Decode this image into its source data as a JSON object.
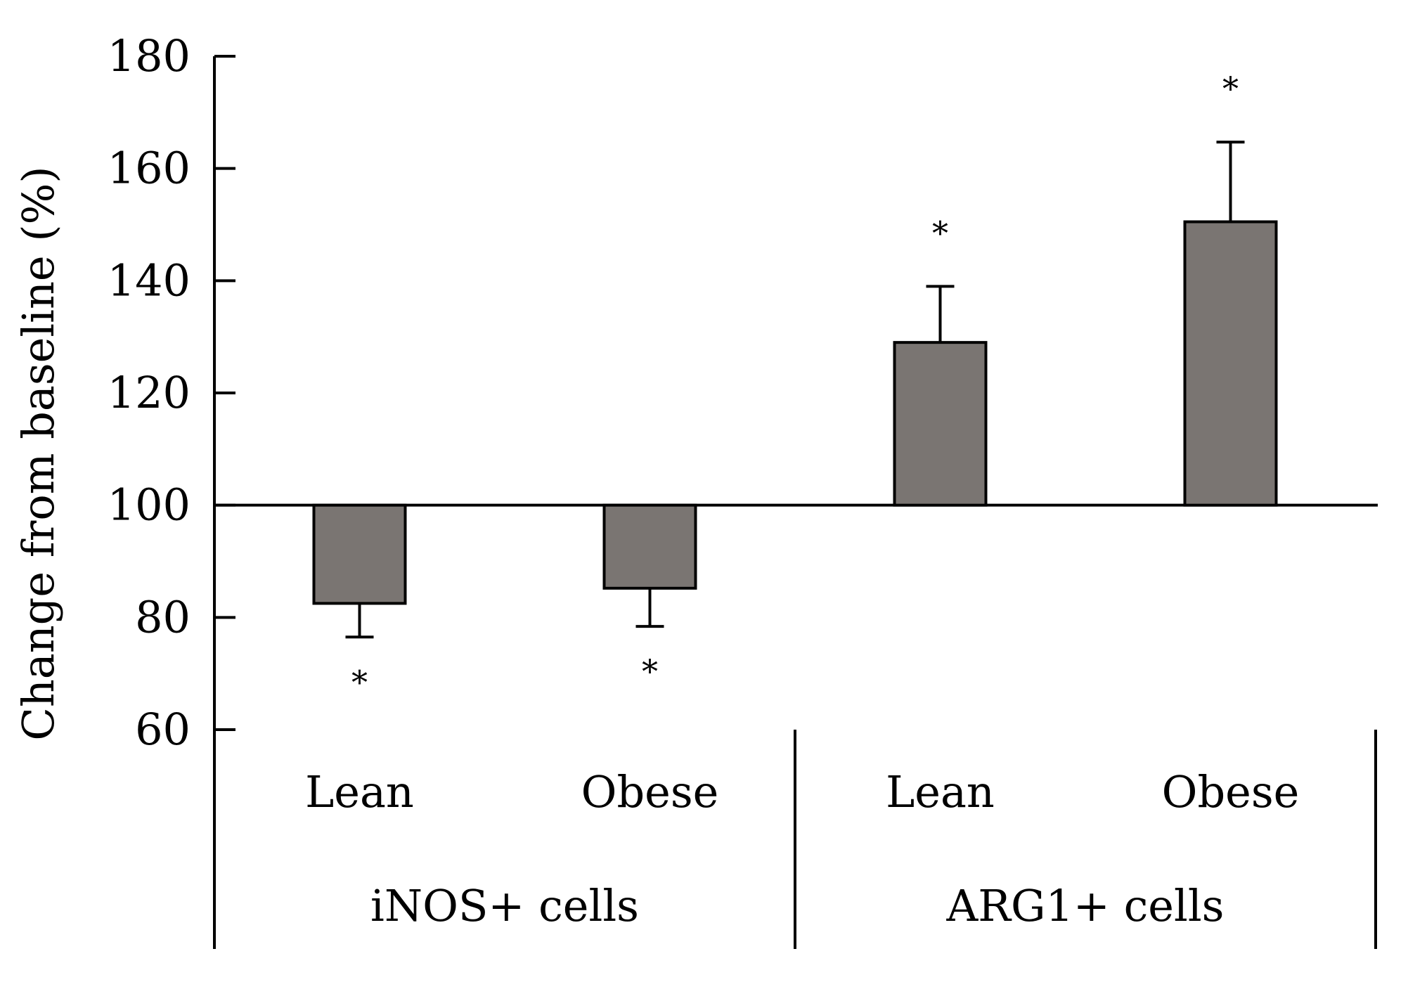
{
  "chart_data": {
    "type": "bar",
    "title": "",
    "xlabel": "",
    "ylabel": "Change from baseline (%)",
    "ylim": [
      60,
      180
    ],
    "yticks": [
      60,
      80,
      100,
      120,
      140,
      160,
      180
    ],
    "baseline": 100,
    "grid": false,
    "bar_color": "#7a7572",
    "categories": [
      "Lean",
      "Obese",
      "Lean",
      "Obese"
    ],
    "groups": [
      {
        "label": "iNOS+ cells",
        "members": [
          0,
          1
        ]
      },
      {
        "label": "ARG1+ cells",
        "members": [
          2,
          3
        ]
      }
    ],
    "values": [
      82.5,
      85.2,
      129,
      150.5
    ],
    "errors": [
      6,
      6.8,
      10,
      14.2
    ],
    "significance": [
      "*",
      "*",
      "*",
      "*"
    ]
  }
}
